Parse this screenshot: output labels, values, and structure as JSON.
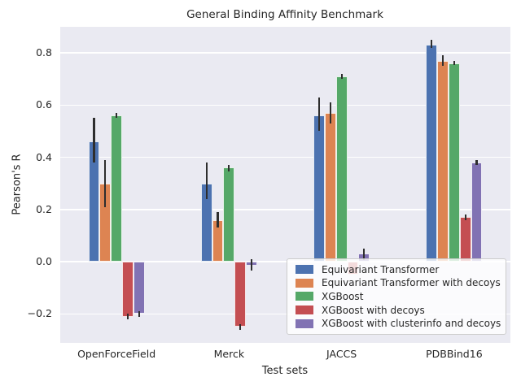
{
  "chart_data": {
    "type": "bar",
    "title": "General Binding Affinity Benchmark",
    "xlabel": "Test sets",
    "ylabel": "Pearson's R",
    "categories": [
      "OpenForceField",
      "Merck",
      "JACCS",
      "PDBBind16"
    ],
    "series": [
      {
        "name": "Equivariant Transformer",
        "color": "#4C72B0",
        "values": [
          0.46,
          0.3,
          0.56,
          0.83
        ],
        "err_lo": [
          0.38,
          0.24,
          0.5,
          0.82
        ],
        "err_hi": [
          0.55,
          0.38,
          0.63,
          0.85
        ]
      },
      {
        "name": "Equivariant Transformer with decoys",
        "color": "#DD8452",
        "values": [
          0.3,
          0.16,
          0.57,
          0.77
        ],
        "err_lo": [
          0.21,
          0.13,
          0.53,
          0.75
        ],
        "err_hi": [
          0.39,
          0.19,
          0.61,
          0.79
        ]
      },
      {
        "name": "XGBoost",
        "color": "#55A868",
        "values": [
          0.56,
          0.36,
          0.71,
          0.76
        ],
        "err_lo": [
          0.55,
          0.345,
          0.7,
          0.755
        ],
        "err_hi": [
          0.57,
          0.37,
          0.72,
          0.77
        ]
      },
      {
        "name": "XGBoost with decoys",
        "color": "#C44E52",
        "values": [
          -0.21,
          -0.25,
          -0.05,
          0.17
        ],
        "err_lo": [
          -0.22,
          -0.26,
          null,
          0.16
        ],
        "err_hi": [
          -0.2,
          -0.24,
          null,
          0.18
        ]
      },
      {
        "name": "XGBoost with clusterinfo and decoys",
        "color": "#8172B3",
        "values": [
          -0.2,
          -0.015,
          0.03,
          0.38
        ],
        "err_lo": [
          -0.21,
          -0.035,
          0.005,
          0.37
        ],
        "err_hi": [
          -0.19,
          0.01,
          0.05,
          0.39
        ]
      }
    ],
    "yticks": [
      0.8,
      0.6,
      0.4,
      0.2,
      0.0,
      -0.2
    ],
    "ylim": [
      -0.311,
      0.9
    ],
    "grid": true,
    "legend_position": "lower right",
    "plot_bg": "#EAEAF2",
    "grid_color": "#FFFFFF",
    "errorbar_color": "#2e2e2e",
    "text_color": "#262626"
  }
}
